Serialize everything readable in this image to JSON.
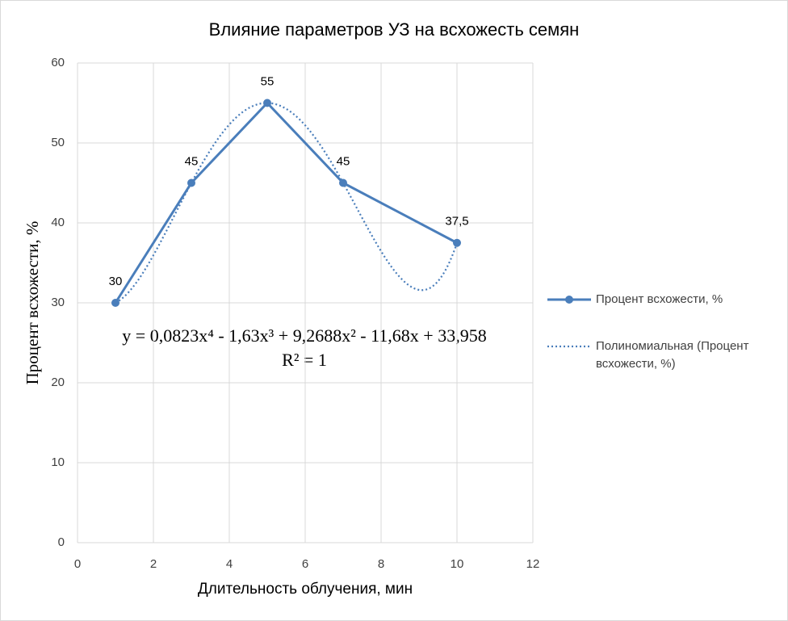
{
  "chart_data": {
    "type": "scatter-line",
    "title": "Влияние параметров УЗ на всхожесть семян",
    "x_label": "Длительность облучения, мин",
    "y_label": "Процент всхожести, %",
    "x": [
      1,
      3,
      5,
      7,
      10
    ],
    "series": [
      {
        "name": "Процент всхожести, %",
        "color": "#4a7ebb",
        "values": [
          30,
          45,
          55,
          45,
          37.5
        ],
        "value_labels": [
          "30",
          "45",
          "55",
          "45",
          "37,5"
        ]
      }
    ],
    "trendline": {
      "type": "polynomial",
      "name": "Полиномиальная (Процент всхожести, %)",
      "equation": "y = 0,0823x⁴ - 1,63x³ + 9,2688x² - 11,68x + 33,958",
      "r2": "R² = 1"
    },
    "xlim": [
      0,
      12
    ],
    "xticks": [
      0,
      2,
      4,
      6,
      8,
      10,
      12
    ],
    "ylim": [
      0,
      60
    ],
    "yticks": [
      0,
      10,
      20,
      30,
      40,
      50,
      60
    ],
    "grid": true,
    "legend": "right"
  }
}
